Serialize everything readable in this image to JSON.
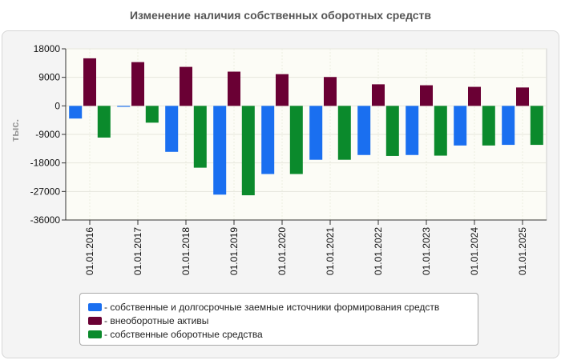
{
  "chart_data": {
    "type": "bar",
    "title": "Изменение наличия собственных оборотных средств",
    "ylabel": "тыс.",
    "xlabel": "",
    "ylim": [
      -36000,
      18000
    ],
    "yticks": [
      18000,
      9000,
      0,
      -9000,
      -18000,
      -27000,
      -36000
    ],
    "ytick_labels": [
      "18000",
      "9000",
      "0",
      "-9000",
      "-18000",
      "-27000",
      "-36000"
    ],
    "grid": true,
    "legend_position": "bottom",
    "categories": [
      "01.01.2016",
      "01.01.2017",
      "01.01.2018",
      "01.01.2019",
      "01.01.2020",
      "01.01.2021",
      "01.01.2022",
      "01.01.2023",
      "01.01.2024",
      "01.01.2025"
    ],
    "series": [
      {
        "name": "- собственные и долгосрочные заемные источники формирования средств",
        "color": "#1a6ff0",
        "values": [
          -4000,
          -300,
          -14500,
          -28000,
          -21500,
          -17000,
          -15500,
          -15500,
          -12500,
          -12300
        ]
      },
      {
        "name": "- внеоборотные активы",
        "color": "#6a0034",
        "values": [
          15000,
          13800,
          12300,
          10800,
          10000,
          9100,
          6800,
          6500,
          6000,
          5800
        ]
      },
      {
        "name": "- собственные оборотные средства",
        "color": "#0b8a2c",
        "values": [
          -10000,
          -5300,
          -19500,
          -28200,
          -21500,
          -17000,
          -15800,
          -15700,
          -12500,
          -12300
        ]
      }
    ]
  }
}
